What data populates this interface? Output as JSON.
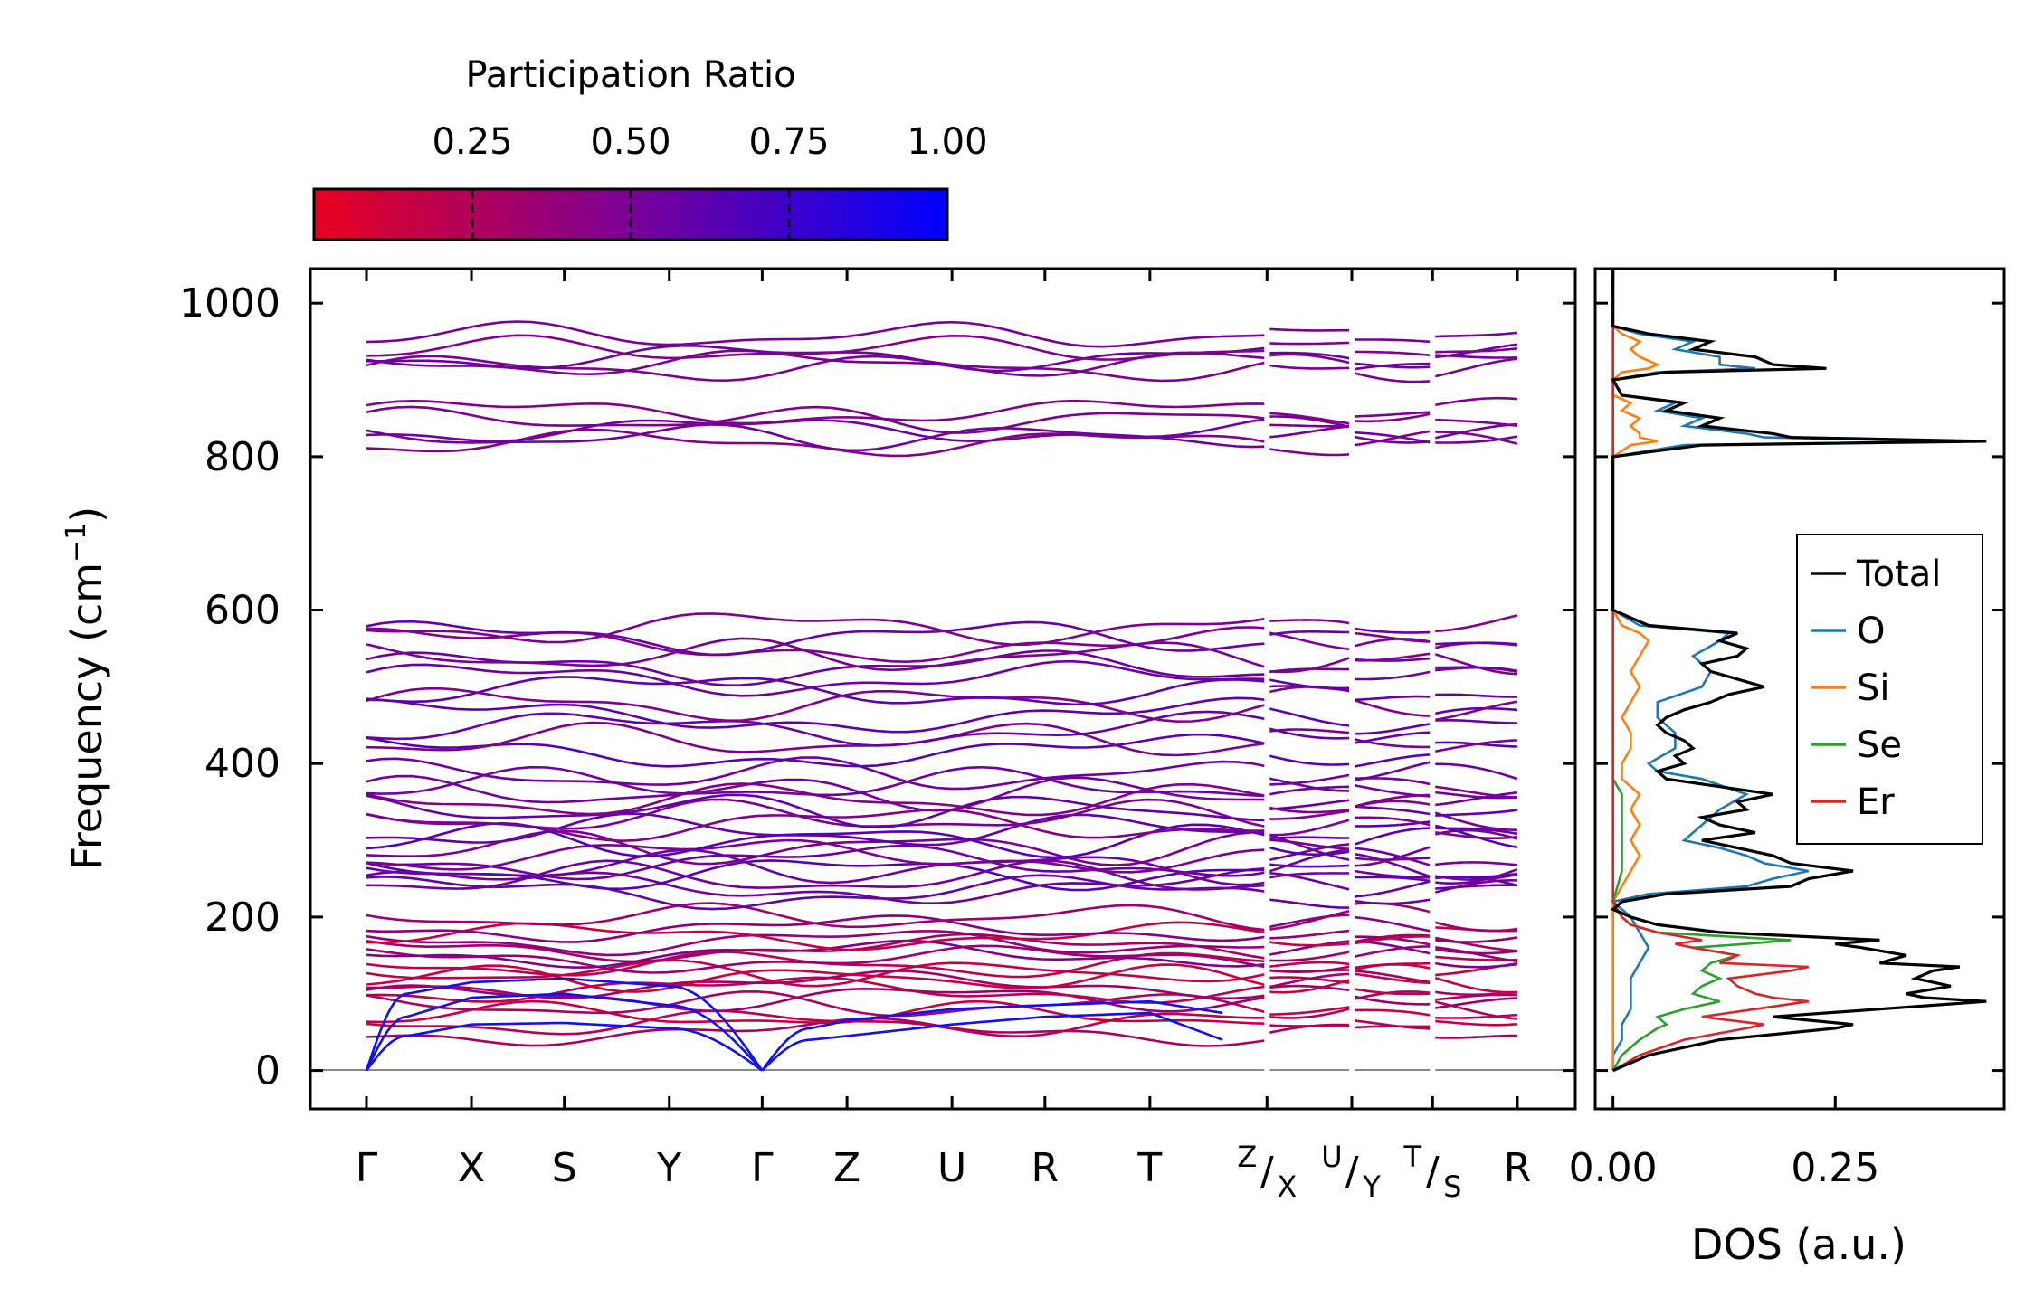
{
  "chart_data": [
    {
      "type": "line",
      "name": "phonon-band-structure",
      "ylabel": "Frequency (cm⁻¹)",
      "ylabel_text": "Frequency (cm",
      "ylabel_sup": "−1",
      "ylabel_close": ")",
      "ylim": [
        -50,
        1045
      ],
      "yticks": [
        0,
        200,
        400,
        600,
        800,
        1000
      ],
      "ytick_labels": [
        "0",
        "200",
        "400",
        "600",
        "800",
        "1000"
      ],
      "kpoint_labels": [
        "Γ",
        "X",
        "S",
        "Y",
        "Γ",
        "Z",
        "U",
        "R",
        "T",
        "Z|X",
        "U|Y",
        "T|S",
        "R"
      ],
      "kpoint_sup": [
        "",
        "",
        "",
        "",
        "",
        "",
        "",
        "",
        "",
        "Z",
        "U",
        "T",
        ""
      ],
      "kpoint_main": [
        "Γ",
        "X",
        "S",
        "Y",
        "Γ",
        "Z",
        "U",
        "R",
        "T",
        "X",
        "Y",
        "S",
        "R"
      ],
      "kpoint_pos": [
        0,
        1.3,
        2.45,
        3.75,
        4.9,
        5.95,
        7.25,
        8.4,
        9.7,
        11.15,
        12.2,
        13.2,
        14.25
      ],
      "path_breaks": [
        11.15,
        12.2,
        13.2
      ],
      "band_colors_by_participation": "color encodes participation ratio: red (low) to blue (1.0)",
      "acoustic_branches": [
        {
          "k": [
            0,
            0.5,
            1.3,
            2.45,
            3.75,
            4.9
          ],
          "freq": [
            0,
            45,
            60,
            62,
            55,
            0
          ]
        },
        {
          "k": [
            0,
            0.5,
            1.3,
            2.45,
            3.75,
            4.9
          ],
          "freq": [
            0,
            70,
            95,
            100,
            85,
            0
          ]
        },
        {
          "k": [
            0,
            0.5,
            1.3,
            2.45,
            3.75,
            4.9
          ],
          "freq": [
            0,
            100,
            115,
            120,
            110,
            0
          ]
        },
        {
          "k": [
            4.9,
            5.5,
            5.95,
            7.25,
            8.4,
            9.7,
            10.6
          ],
          "freq": [
            0,
            40,
            45,
            60,
            70,
            75,
            40
          ]
        },
        {
          "k": [
            4.9,
            5.5,
            5.95,
            7.25,
            8.4,
            9.7,
            10.6
          ],
          "freq": [
            0,
            55,
            65,
            80,
            85,
            90,
            75
          ]
        }
      ],
      "optical_band_levels": [
        50,
        62,
        72,
        85,
        95,
        105,
        112,
        120,
        128,
        138,
        145,
        152,
        160,
        168,
        175,
        185,
        200,
        232,
        240,
        250,
        258,
        265,
        272,
        280,
        290,
        300,
        312,
        322,
        330,
        340,
        352,
        362,
        372,
        385,
        415,
        430,
        445,
        462,
        478,
        495,
        510,
        525,
        540,
        555,
        565,
        578,
        818,
        826,
        835,
        848,
        858,
        915,
        922,
        930,
        940,
        958
      ]
    },
    {
      "type": "line",
      "name": "density-of-states",
      "xlabel": "DOS (a.u.)",
      "xlim": [
        -0.02,
        0.44
      ],
      "xticks": [
        0.0,
        0.25
      ],
      "xtick_labels": [
        "0.00",
        "0.25"
      ],
      "ylim": [
        -50,
        1045
      ],
      "legend_placement": "center-right",
      "series": [
        {
          "name": "Total",
          "color": "#000000",
          "freq": [
            0,
            20,
            40,
            55,
            60,
            70,
            80,
            90,
            95,
            100,
            110,
            120,
            130,
            135,
            140,
            150,
            160,
            165,
            170,
            180,
            190,
            200,
            210,
            220,
            230,
            240,
            250,
            260,
            270,
            280,
            290,
            300,
            310,
            320,
            330,
            340,
            350,
            360,
            370,
            380,
            390,
            400,
            410,
            420,
            430,
            440,
            450,
            460,
            470,
            480,
            490,
            500,
            510,
            520,
            530,
            540,
            550,
            560,
            570,
            580,
            600,
            700,
            800,
            815,
            820,
            825,
            830,
            840,
            850,
            860,
            870,
            880,
            900,
            910,
            915,
            920,
            930,
            940,
            950,
            960,
            970,
            1045
          ],
          "dos": [
            0,
            0.04,
            0.12,
            0.25,
            0.27,
            0.18,
            0.3,
            0.42,
            0.35,
            0.33,
            0.38,
            0.34,
            0.36,
            0.39,
            0.3,
            0.33,
            0.28,
            0.25,
            0.3,
            0.12,
            0.05,
            0.02,
            0.0,
            0.01,
            0.06,
            0.2,
            0.22,
            0.27,
            0.2,
            0.18,
            0.14,
            0.1,
            0.16,
            0.12,
            0.1,
            0.15,
            0.14,
            0.18,
            0.12,
            0.06,
            0.05,
            0.08,
            0.07,
            0.09,
            0.08,
            0.06,
            0.05,
            0.06,
            0.08,
            0.11,
            0.13,
            0.17,
            0.14,
            0.11,
            0.1,
            0.14,
            0.15,
            0.12,
            0.14,
            0.04,
            0.0,
            0.0,
            0.0,
            0.1,
            0.42,
            0.2,
            0.18,
            0.1,
            0.12,
            0.06,
            0.08,
            0.01,
            0.0,
            0.06,
            0.24,
            0.18,
            0.16,
            0.09,
            0.11,
            0.04,
            0.0,
            0.0
          ]
        },
        {
          "name": "O",
          "color": "#1f77b4",
          "freq": [
            0,
            20,
            40,
            60,
            80,
            100,
            120,
            140,
            160,
            180,
            200,
            220,
            230,
            240,
            250,
            260,
            270,
            280,
            290,
            300,
            320,
            340,
            360,
            380,
            390,
            400,
            420,
            440,
            460,
            480,
            500,
            520,
            540,
            560,
            570,
            580,
            600,
            800,
            815,
            820,
            825,
            830,
            840,
            850,
            860,
            870,
            880,
            900,
            910,
            915,
            920,
            930,
            940,
            950,
            960,
            970,
            1045
          ],
          "dos": [
            0,
            0.0,
            0.01,
            0.01,
            0.02,
            0.02,
            0.02,
            0.03,
            0.04,
            0.03,
            0.02,
            0.0,
            0.04,
            0.15,
            0.18,
            0.22,
            0.17,
            0.15,
            0.12,
            0.08,
            0.1,
            0.12,
            0.15,
            0.1,
            0.05,
            0.04,
            0.07,
            0.07,
            0.05,
            0.05,
            0.1,
            0.11,
            0.09,
            0.12,
            0.13,
            0.03,
            0.0,
            0.0,
            0.08,
            0.38,
            0.17,
            0.15,
            0.08,
            0.1,
            0.05,
            0.07,
            0.01,
            0.0,
            0.05,
            0.16,
            0.12,
            0.12,
            0.07,
            0.09,
            0.03,
            0.0,
            0.0
          ]
        },
        {
          "name": "Si",
          "color": "#ff7f0e",
          "freq": [
            0,
            40,
            80,
            120,
            160,
            200,
            220,
            240,
            260,
            280,
            300,
            320,
            340,
            360,
            380,
            390,
            400,
            420,
            440,
            460,
            480,
            500,
            520,
            540,
            560,
            570,
            580,
            600,
            800,
            815,
            820,
            825,
            830,
            840,
            850,
            860,
            870,
            880,
            900,
            910,
            915,
            920,
            930,
            940,
            950,
            960,
            970,
            1045
          ],
          "dos": [
            0,
            0.0,
            0.0,
            0.0,
            0.0,
            0.0,
            0.0,
            0.01,
            0.02,
            0.03,
            0.02,
            0.03,
            0.02,
            0.03,
            0.01,
            0.01,
            0.01,
            0.02,
            0.02,
            0.01,
            0.02,
            0.03,
            0.02,
            0.03,
            0.04,
            0.03,
            0.01,
            0.0,
            0.0,
            0.02,
            0.05,
            0.03,
            0.03,
            0.02,
            0.03,
            0.01,
            0.02,
            0.0,
            0.0,
            0.01,
            0.04,
            0.05,
            0.03,
            0.02,
            0.03,
            0.01,
            0.0,
            0.0
          ]
        },
        {
          "name": "Se",
          "color": "#2ca02c",
          "freq": [
            0,
            20,
            40,
            55,
            60,
            70,
            80,
            90,
            100,
            110,
            120,
            130,
            140,
            150,
            160,
            165,
            170,
            180,
            190,
            200,
            220,
            260,
            300,
            340,
            360,
            380,
            1045
          ],
          "dos": [
            0,
            0.01,
            0.03,
            0.05,
            0.06,
            0.05,
            0.08,
            0.12,
            0.09,
            0.1,
            0.12,
            0.1,
            0.11,
            0.14,
            0.09,
            0.15,
            0.2,
            0.05,
            0.02,
            0.01,
            0.0,
            0.01,
            0.01,
            0.01,
            0.01,
            0.0,
            0.0
          ]
        },
        {
          "name": "Er",
          "color": "#d62728",
          "freq": [
            0,
            20,
            40,
            55,
            60,
            70,
            80,
            90,
            95,
            100,
            110,
            120,
            130,
            135,
            140,
            150,
            160,
            165,
            170,
            180,
            190,
            200,
            220,
            1045
          ],
          "dos": [
            0,
            0.03,
            0.08,
            0.15,
            0.17,
            0.1,
            0.16,
            0.22,
            0.18,
            0.16,
            0.14,
            0.13,
            0.2,
            0.22,
            0.12,
            0.14,
            0.09,
            0.07,
            0.1,
            0.05,
            0.02,
            0.01,
            0.0,
            0.0
          ]
        }
      ]
    },
    {
      "type": "heatmap",
      "name": "participation-ratio-colorbar",
      "title": "Participation Ratio",
      "range": [
        0.0,
        1.0
      ],
      "ticks": [
        0.25,
        0.5,
        0.75,
        1.0
      ],
      "tick_labels": [
        "0.25",
        "0.50",
        "0.75",
        "1.00"
      ],
      "color_low": "#e8001f",
      "color_mid": "#7a0096",
      "color_high": "#0000ff"
    }
  ]
}
